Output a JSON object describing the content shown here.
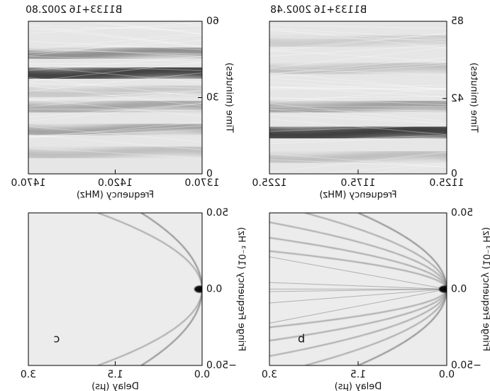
{
  "chart_data": [
    {
      "type": "heatmap",
      "title": "B1133+16",
      "subtitle": "2002.48",
      "xlabel": "Frequency (MHz)",
      "ylabel": "Time (minutes)",
      "xlim": [
        1125,
        1225
      ],
      "xticks": [
        {
          "value": 1125,
          "label": "1125.0"
        },
        {
          "value": 1175,
          "label": "1175.0"
        },
        {
          "value": 1225,
          "label": "1225.0"
        }
      ],
      "ylim": [
        0,
        85
      ],
      "yticks": [
        0,
        42,
        85
      ]
    },
    {
      "type": "heatmap",
      "title": "B1133+16",
      "subtitle": "2002.80",
      "xlabel": "Frequency (MHz)",
      "ylabel": "Time (minutes)",
      "xlim": [
        1370,
        1470
      ],
      "xticks": [
        {
          "value": 1370,
          "label": "1370.0"
        },
        {
          "value": 1420,
          "label": "1420.0"
        },
        {
          "value": 1470,
          "label": "1470.0"
        }
      ],
      "ylim": [
        0,
        60
      ],
      "yticks": [
        0,
        30,
        60
      ]
    },
    {
      "type": "secondary-spectrum",
      "label": "b",
      "xlabel": "Delay (μs)",
      "ylabel": "Fringe Frequency (10⁻³ Hz)",
      "xlim": [
        0,
        3
      ],
      "xticks": [
        {
          "value": 0,
          "label": "0.0"
        },
        {
          "value": 1.5,
          "label": "1.5"
        },
        {
          "value": 3,
          "label": "3.0"
        }
      ],
      "ylim": [
        -50,
        50
      ],
      "yticks": [
        {
          "value": -50,
          "label": "−50.0"
        },
        {
          "value": 0,
          "label": "0.0"
        },
        {
          "value": 50,
          "label": "50.0"
        }
      ]
    },
    {
      "type": "secondary-spectrum",
      "label": "c",
      "xlabel": "Delay (μs)",
      "ylabel": "Fringe Frequency (10⁻³ Hz)",
      "xlim": [
        0,
        3
      ],
      "xticks": [
        {
          "value": 0,
          "label": "0.0"
        },
        {
          "value": 1.5,
          "label": "1.5"
        },
        {
          "value": 3,
          "label": "3.0"
        }
      ],
      "ylim": [
        -50,
        50
      ],
      "yticks": [
        {
          "value": -50,
          "label": "−50.0"
        },
        {
          "value": 0,
          "label": "0.0"
        },
        {
          "value": 50,
          "label": "50.0"
        }
      ]
    }
  ]
}
